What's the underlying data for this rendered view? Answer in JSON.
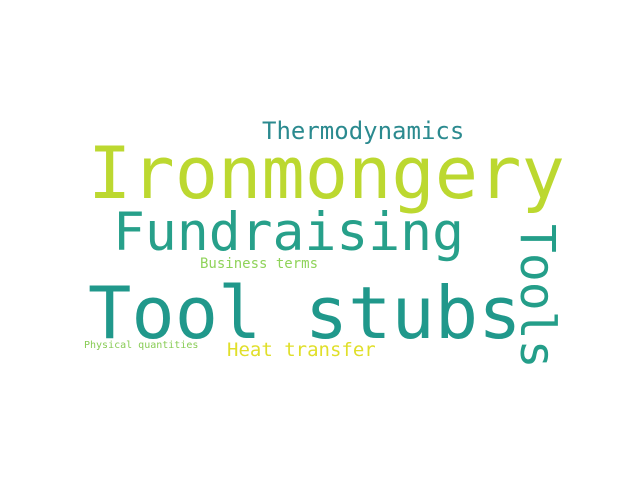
{
  "words": [
    {
      "text": "Thermodynamics",
      "color": "#2b8a8f"
    },
    {
      "text": "Ironmongery",
      "color": "#bcd830"
    },
    {
      "text": "Fundraising",
      "color": "#27a08a"
    },
    {
      "text": "Business terms",
      "color": "#8fd35a"
    },
    {
      "text": "Tool stubs",
      "color": "#20988b"
    },
    {
      "text": "Tools",
      "color": "#249e89"
    },
    {
      "text": "Heat transfer",
      "color": "#e0df2a"
    },
    {
      "text": "Physical quantities",
      "color": "#88cc55"
    }
  ]
}
